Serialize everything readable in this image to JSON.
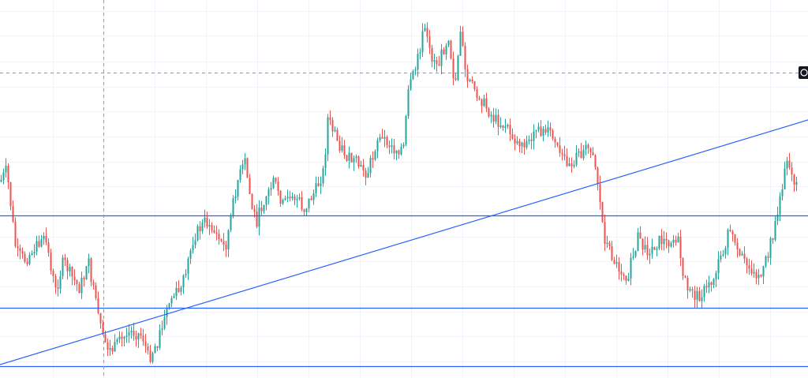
{
  "chart_data": {
    "type": "candlestick",
    "ylim": [
      0,
      479
    ],
    "grid": true,
    "colors": {
      "up": "#26a69a",
      "down": "#ef5350",
      "drawing": "#2962ff",
      "grid": "#f0f3fa",
      "crosshair": "#9598a1"
    },
    "horizontal_levels": [
      273,
      390,
      464
    ],
    "trendline": {
      "from": [
        0,
        462
      ],
      "to": [
        1024,
        152
      ]
    },
    "crosshair": {
      "x": 131,
      "y": 92
    },
    "anchors": [
      [
        0,
        230
      ],
      [
        8,
        215
      ],
      [
        20,
        320
      ],
      [
        32,
        330
      ],
      [
        45,
        310
      ],
      [
        58,
        305
      ],
      [
        70,
        370
      ],
      [
        80,
        330
      ],
      [
        90,
        350
      ],
      [
        100,
        365
      ],
      [
        112,
        335
      ],
      [
        120,
        380
      ],
      [
        130,
        430
      ],
      [
        140,
        445
      ],
      [
        150,
        435
      ],
      [
        165,
        420
      ],
      [
        180,
        425
      ],
      [
        188,
        455
      ],
      [
        200,
        430
      ],
      [
        215,
        380
      ],
      [
        230,
        365
      ],
      [
        245,
        300
      ],
      [
        260,
        280
      ],
      [
        272,
        295
      ],
      [
        285,
        315
      ],
      [
        300,
        230
      ],
      [
        310,
        205
      ],
      [
        318,
        260
      ],
      [
        325,
        280
      ],
      [
        335,
        250
      ],
      [
        348,
        230
      ],
      [
        358,
        260
      ],
      [
        370,
        245
      ],
      [
        385,
        265
      ],
      [
        400,
        240
      ],
      [
        410,
        215
      ],
      [
        415,
        150
      ],
      [
        425,
        175
      ],
      [
        440,
        200
      ],
      [
        455,
        210
      ],
      [
        465,
        220
      ],
      [
        478,
        175
      ],
      [
        490,
        180
      ],
      [
        500,
        190
      ],
      [
        512,
        185
      ],
      [
        516,
        120
      ],
      [
        528,
        80
      ],
      [
        537,
        35
      ],
      [
        545,
        70
      ],
      [
        555,
        80
      ],
      [
        568,
        45
      ],
      [
        576,
        110
      ],
      [
        583,
        35
      ],
      [
        590,
        100
      ],
      [
        600,
        110
      ],
      [
        612,
        130
      ],
      [
        625,
        150
      ],
      [
        640,
        160
      ],
      [
        655,
        180
      ],
      [
        670,
        180
      ],
      [
        685,
        165
      ],
      [
        698,
        170
      ],
      [
        710,
        200
      ],
      [
        725,
        205
      ],
      [
        740,
        190
      ],
      [
        750,
        185
      ],
      [
        757,
        230
      ],
      [
        765,
        300
      ],
      [
        780,
        335
      ],
      [
        795,
        350
      ],
      [
        808,
        300
      ],
      [
        820,
        320
      ],
      [
        835,
        305
      ],
      [
        848,
        305
      ],
      [
        858,
        300
      ],
      [
        865,
        345
      ],
      [
        875,
        375
      ],
      [
        885,
        375
      ],
      [
        900,
        360
      ],
      [
        915,
        320
      ],
      [
        925,
        290
      ],
      [
        935,
        325
      ],
      [
        950,
        340
      ],
      [
        965,
        350
      ],
      [
        978,
        300
      ],
      [
        988,
        255
      ],
      [
        996,
        195
      ],
      [
        1002,
        220
      ],
      [
        1010,
        235
      ]
    ]
  }
}
